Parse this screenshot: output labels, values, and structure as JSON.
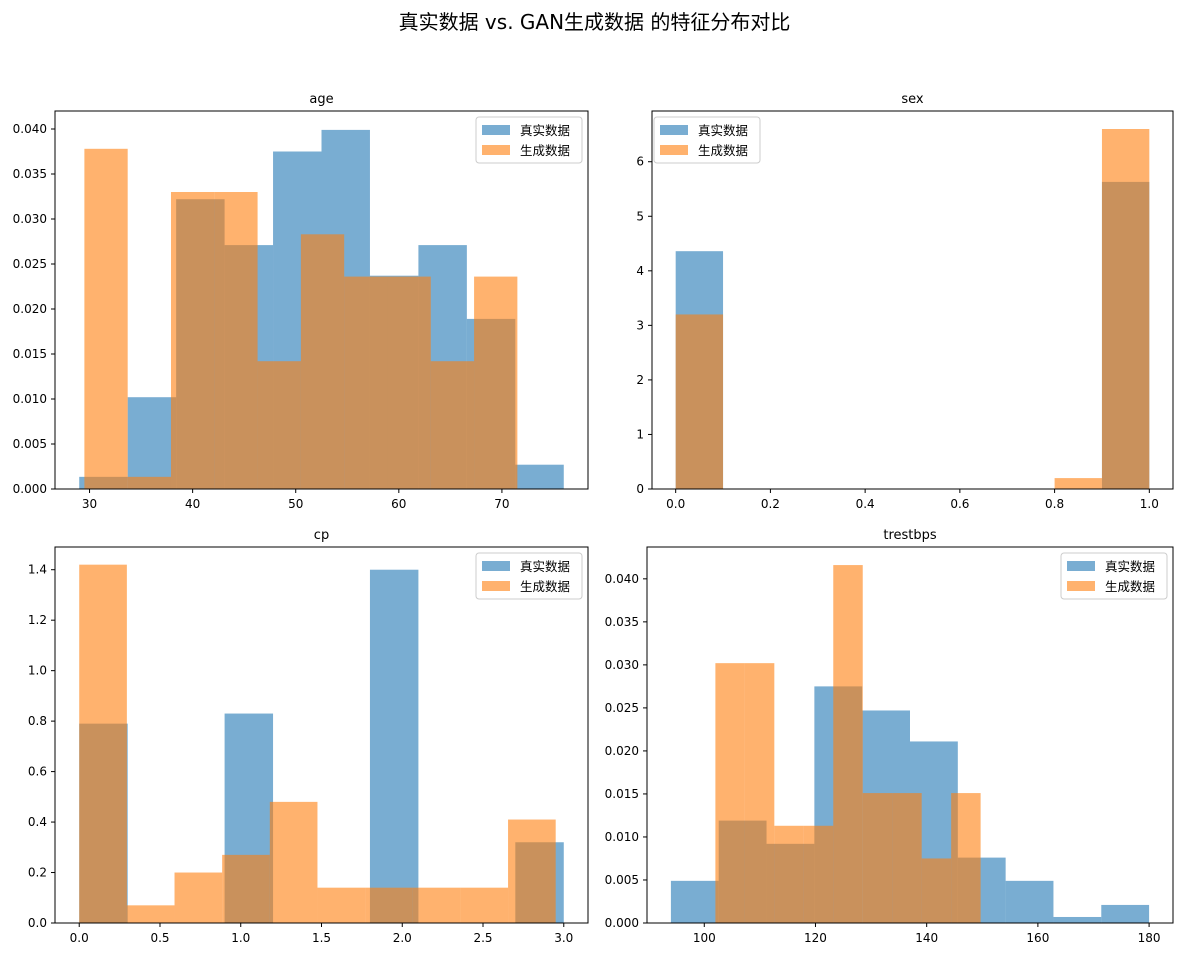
{
  "figure": {
    "suptitle": "真实数据 vs. GAN生成数据 的特征分布对比"
  },
  "colors": {
    "real": "#1f77b4",
    "generated": "#ff7f0e",
    "alpha": 0.6
  },
  "legend": {
    "real_label": "真实数据",
    "generated_label": "生成数据"
  },
  "chart_data": [
    {
      "type": "histogram",
      "title": "age",
      "xlim": [
        26.65,
        78.35
      ],
      "ylim": [
        0,
        0.042
      ],
      "xticks": [
        30,
        40,
        50,
        60,
        70
      ],
      "yticks": [
        0.0,
        0.005,
        0.01,
        0.015,
        0.02,
        0.025,
        0.03,
        0.035,
        0.04
      ],
      "ytick_decimals": 3,
      "xtick_decimals": 0,
      "legend_position": "upper right",
      "series": [
        {
          "name": "真实数据",
          "bin_edges": [
            29,
            33.7,
            38.4,
            43.1,
            47.8,
            52.5,
            57.2,
            61.9,
            66.6,
            71.3,
            76
          ],
          "density": [
            0.00135,
            0.0102,
            0.0322,
            0.0271,
            0.0375,
            0.0399,
            0.0237,
            0.0271,
            0.0189,
            0.0027
          ]
        },
        {
          "name": "生成数据",
          "bin_edges": [
            29.5,
            33.7,
            37.9,
            42.1,
            46.3,
            50.5,
            54.7,
            58.9,
            63.1,
            67.3,
            71.5
          ],
          "density": [
            0.0378,
            0.00135,
            0.033,
            0.033,
            0.0142,
            0.0283,
            0.0236,
            0.0236,
            0.0142,
            0.0236
          ]
        }
      ]
    },
    {
      "type": "histogram",
      "title": "sex",
      "xlim": [
        -0.05,
        1.05
      ],
      "ylim": [
        0,
        6.93
      ],
      "xticks": [
        0.0,
        0.2,
        0.4,
        0.6,
        0.8,
        1.0
      ],
      "yticks": [
        0,
        1,
        2,
        3,
        4,
        5,
        6
      ],
      "ytick_decimals": 0,
      "xtick_decimals": 1,
      "legend_position": "upper left",
      "series": [
        {
          "name": "真实数据",
          "bin_edges": [
            0,
            0.1,
            0.2,
            0.3,
            0.4,
            0.5,
            0.6,
            0.7,
            0.8,
            0.9,
            1.0
          ],
          "density": [
            4.36,
            0,
            0,
            0,
            0,
            0,
            0,
            0,
            0,
            5.63
          ]
        },
        {
          "name": "生成数据",
          "bin_edges": [
            0,
            0.1,
            0.2,
            0.3,
            0.4,
            0.5,
            0.6,
            0.7,
            0.8,
            0.9,
            1.0
          ],
          "density": [
            3.2,
            0,
            0,
            0,
            0,
            0,
            0,
            0,
            0.2,
            6.6
          ]
        }
      ]
    },
    {
      "type": "histogram",
      "title": "cp",
      "xlim": [
        -0.15,
        3.15
      ],
      "ylim": [
        0,
        1.49
      ],
      "xticks": [
        0.0,
        0.5,
        1.0,
        1.5,
        2.0,
        2.5,
        3.0
      ],
      "yticks": [
        0.0,
        0.2,
        0.4,
        0.6,
        0.8,
        1.0,
        1.2,
        1.4
      ],
      "ytick_decimals": 1,
      "xtick_decimals": 1,
      "legend_position": "upper right",
      "series": [
        {
          "name": "真实数据",
          "bin_edges": [
            0,
            0.3,
            0.6,
            0.9,
            1.2,
            1.5,
            1.8,
            2.1,
            2.4,
            2.7,
            3.0
          ],
          "density": [
            0.79,
            0,
            0,
            0.83,
            0,
            0,
            1.4,
            0,
            0,
            0.32
          ]
        },
        {
          "name": "生成数据",
          "bin_edges": [
            0,
            0.295,
            0.59,
            0.885,
            1.18,
            1.475,
            1.77,
            2.065,
            2.36,
            2.655,
            2.95
          ],
          "density": [
            1.42,
            0.07,
            0.2,
            0.27,
            0.48,
            0.14,
            0.14,
            0.14,
            0.14,
            0.41
          ]
        }
      ]
    },
    {
      "type": "histogram",
      "title": "trestbps",
      "xlim": [
        89.7,
        184.3
      ],
      "ylim": [
        0,
        0.0437
      ],
      "xticks": [
        100,
        120,
        140,
        160,
        180
      ],
      "yticks": [
        0.0,
        0.005,
        0.01,
        0.015,
        0.02,
        0.025,
        0.03,
        0.035,
        0.04
      ],
      "ytick_decimals": 3,
      "xtick_decimals": 0,
      "legend_position": "upper right",
      "series": [
        {
          "name": "真实数据",
          "bin_edges": [
            94,
            102.6,
            111.2,
            119.8,
            128.4,
            137,
            145.6,
            154.2,
            162.8,
            171.4,
            180
          ],
          "density": [
            0.0049,
            0.0119,
            0.0092,
            0.0275,
            0.0247,
            0.0211,
            0.0076,
            0.0049,
            0.0007,
            0.0021
          ]
        },
        {
          "name": "生成数据",
          "bin_edges": [
            102,
            107.3,
            112.6,
            117.9,
            123.2,
            128.5,
            133.8,
            139.1,
            144.4,
            149.7,
            155
          ],
          "density": [
            0.0302,
            0.0302,
            0.0113,
            0.0113,
            0.0416,
            0.0151,
            0.0151,
            0.0075,
            0.0151,
            0.0
          ]
        }
      ]
    }
  ]
}
